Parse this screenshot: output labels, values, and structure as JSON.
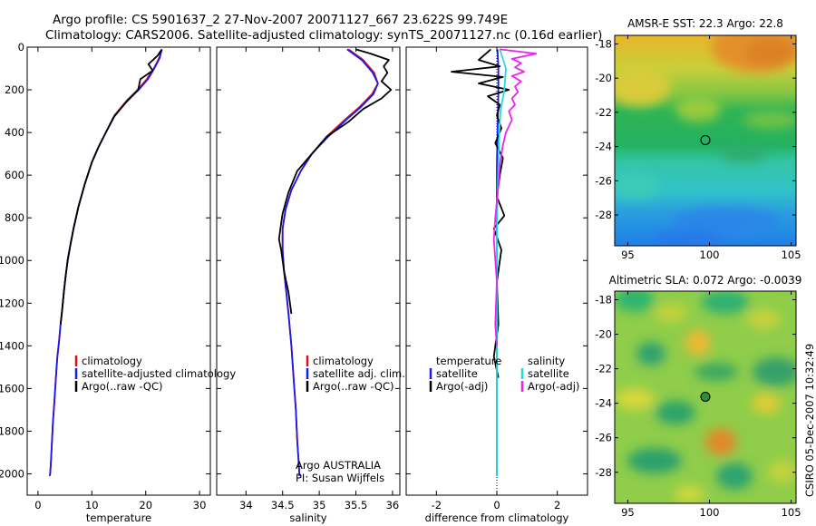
{
  "page": {
    "title_line1": "Argo profile: CS 5901637_2 27-Nov-2007 20071127_667 23.622S 99.749E",
    "title_line2": "Climatology: CARS2006. Satellite-adjusted climatology: synTS_20071127.nc (0.16d earlier)",
    "footer": "CSIRO 05-Dec-2007 10:32:49"
  },
  "colors": {
    "climatology": "#dd1111",
    "satellite": "#1a1aee",
    "argo": "#000000",
    "salinity_satellite": "#22dddd",
    "salinity_argo": "#ee22ee"
  },
  "chart_data": [
    {
      "id": "temperature",
      "type": "line",
      "xlabel": "temperature",
      "ylabel": "",
      "xlim": [
        -2,
        32
      ],
      "ylim": [
        0,
        2100
      ],
      "y_inverted": true,
      "xticks": [
        0,
        10,
        20,
        30
      ],
      "yticks": [
        0,
        200,
        400,
        600,
        800,
        1000,
        1200,
        1400,
        1600,
        1800,
        2000
      ],
      "legend": [
        "climatology",
        "satellite-adjusted climatology",
        "Argo(..raw -QC)"
      ],
      "series": [
        {
          "name": "climatology",
          "color_key": "climatology",
          "x": [
            23,
            22.5,
            21.5,
            20.2,
            18.5,
            16.5,
            14.2,
            12.6,
            11.2,
            10.0,
            8.7,
            7.5,
            6.6,
            6.0,
            5.5,
            5.1,
            4.8,
            4.5,
            4.2,
            3.9,
            3.6,
            3.4,
            3.2,
            3.0,
            2.8,
            2.7,
            2.6,
            2.5,
            2.4,
            2.3,
            2.2
          ],
          "y": [
            10,
            50,
            100,
            150,
            200,
            250,
            320,
            400,
            470,
            540,
            640,
            750,
            850,
            930,
            1000,
            1080,
            1150,
            1230,
            1300,
            1380,
            1450,
            1520,
            1600,
            1680,
            1750,
            1800,
            1850,
            1900,
            1950,
            1990,
            2010
          ]
        },
        {
          "name": "satellite-adjusted climatology",
          "color_key": "satellite",
          "x": [
            23,
            22.6,
            21.6,
            20.4,
            18.7,
            16.6,
            14.3,
            12.6,
            11.2,
            10.0,
            8.7,
            7.5,
            6.6,
            6.0,
            5.5,
            5.1,
            4.8,
            4.5,
            4.2,
            3.9,
            3.6,
            3.4,
            3.2,
            3.0,
            2.8,
            2.7,
            2.6,
            2.5,
            2.4,
            2.3,
            2.2
          ],
          "y": [
            10,
            50,
            100,
            150,
            200,
            250,
            320,
            400,
            470,
            540,
            640,
            750,
            850,
            930,
            1000,
            1080,
            1150,
            1230,
            1300,
            1380,
            1450,
            1520,
            1600,
            1680,
            1750,
            1800,
            1850,
            1900,
            1950,
            1990,
            2010
          ]
        },
        {
          "name": "Argo(..raw -QC)",
          "color_key": "argo",
          "x": [
            23,
            22.2,
            20.5,
            21.3,
            19.0,
            18.6,
            16.3,
            14.0,
            12.6,
            11.2,
            10.0,
            8.7,
            7.5,
            6.6,
            6.0,
            5.5,
            5.1,
            4.8,
            4.5,
            4.2
          ],
          "y": [
            10,
            40,
            80,
            110,
            150,
            200,
            260,
            330,
            400,
            470,
            540,
            640,
            750,
            850,
            930,
            1000,
            1080,
            1150,
            1230,
            1300
          ]
        }
      ]
    },
    {
      "id": "salinity",
      "type": "line",
      "xlabel": "salinity",
      "ylabel": "",
      "xlim": [
        33.6,
        36.1
      ],
      "ylim": [
        0,
        2100
      ],
      "y_inverted": true,
      "xticks": [
        34,
        34.5,
        35,
        35.5,
        36
      ],
      "legend": [
        "climatology",
        "satellite adj. clim.",
        "Argo(..raw -QC)"
      ],
      "annotation": [
        "Argo AUSTRALIA",
        "PI: Susan Wijffels"
      ],
      "series": [
        {
          "name": "climatology",
          "color_key": "climatology",
          "x": [
            35.4,
            35.6,
            35.75,
            35.8,
            35.72,
            35.55,
            35.35,
            35.1,
            34.9,
            34.75,
            34.62,
            34.54,
            34.5,
            34.5,
            34.52,
            34.55,
            34.58,
            34.62,
            34.65,
            34.68,
            34.7,
            34.72,
            34.73
          ],
          "y": [
            10,
            60,
            120,
            170,
            220,
            280,
            340,
            420,
            500,
            580,
            670,
            760,
            850,
            950,
            1050,
            1150,
            1250,
            1400,
            1550,
            1700,
            1850,
            1950,
            2010
          ]
        },
        {
          "name": "satellite adj. clim.",
          "color_key": "satellite",
          "x": [
            35.38,
            35.58,
            35.73,
            35.8,
            35.74,
            35.57,
            35.37,
            35.12,
            34.9,
            34.75,
            34.62,
            34.54,
            34.5,
            34.5,
            34.52,
            34.55,
            34.58,
            34.62,
            34.65,
            34.68,
            34.7,
            34.72,
            34.73
          ],
          "y": [
            10,
            60,
            120,
            170,
            220,
            280,
            340,
            420,
            500,
            580,
            670,
            760,
            850,
            950,
            1050,
            1150,
            1250,
            1400,
            1550,
            1700,
            1850,
            1950,
            2010
          ]
        },
        {
          "name": "Argo(..raw -QC)",
          "color_key": "argo",
          "x": [
            35.5,
            35.7,
            35.95,
            35.88,
            35.93,
            35.85,
            35.98,
            35.85,
            35.6,
            35.4,
            35.1,
            34.9,
            34.7,
            34.58,
            34.5,
            34.47,
            34.45,
            34.48,
            34.52,
            34.58,
            34.62
          ],
          "y": [
            10,
            30,
            60,
            90,
            120,
            160,
            200,
            240,
            290,
            350,
            420,
            500,
            580,
            680,
            780,
            850,
            900,
            950,
            1050,
            1150,
            1250
          ]
        }
      ]
    },
    {
      "id": "difference",
      "type": "line",
      "xlabel": "difference from climatology",
      "ylabel": "",
      "xlim": [
        -3.0,
        3.0
      ],
      "ylim": [
        0,
        2100
      ],
      "y_inverted": true,
      "xticks": [
        -2,
        0,
        2
      ],
      "legend_left_header": "temperature",
      "legend_left": [
        "satellite",
        "Argo(-adj)"
      ],
      "legend_right_header": "salinity",
      "legend_right": [
        "satellite",
        "Argo(-adj)"
      ],
      "series": [
        {
          "name": "temperature satellite",
          "color_key": "satellite",
          "x": [
            0.02,
            0.05,
            0.05,
            0.04,
            0.02,
            0.0,
            0.0,
            0.0,
            0.0,
            0.0,
            0.0,
            0.0,
            0.0,
            0.0,
            0.0
          ],
          "y": [
            10,
            100,
            200,
            300,
            400,
            550,
            700,
            900,
            1100,
            1300,
            1500,
            1700,
            1850,
            1950,
            2010
          ]
        },
        {
          "name": "temperature Argo(-adj)",
          "color_key": "argo",
          "x": [
            -0.2,
            -0.6,
            0.1,
            -1.5,
            0.2,
            -0.6,
            0.4,
            -0.3,
            0.1,
            0.0,
            0.15,
            -0.05,
            0.2,
            0.1,
            0.0,
            0.25,
            -0.1,
            0.15,
            0.0,
            0.05,
            -0.1,
            0.05
          ],
          "y": [
            10,
            60,
            90,
            115,
            140,
            170,
            200,
            230,
            270,
            320,
            380,
            450,
            520,
            600,
            700,
            790,
            850,
            950,
            1100,
            1300,
            1450,
            1550
          ]
        },
        {
          "name": "salinity satellite",
          "color_key": "salinity_satellite",
          "x": [
            0.1,
            0.3,
            0.25,
            0.12,
            0.08,
            0.05,
            0.02,
            0.0,
            0.0,
            0.0,
            0.0,
            0.0,
            0.0,
            0.0
          ],
          "y": [
            10,
            100,
            200,
            300,
            400,
            550,
            700,
            900,
            1100,
            1300,
            1500,
            1700,
            1900,
            2010
          ]
        },
        {
          "name": "salinity Argo(-adj)",
          "color_key": "salinity_argo",
          "x": [
            0.1,
            1.3,
            0.5,
            0.8,
            0.6,
            0.9,
            0.5,
            0.8,
            0.6,
            0.7,
            0.5,
            0.6,
            0.4,
            0.5,
            0.3,
            0.2,
            0.1,
            0.05,
            -0.05,
            -0.1,
            0.0,
            -0.05,
            0.0
          ],
          "y": [
            10,
            30,
            55,
            75,
            95,
            115,
            135,
            160,
            185,
            210,
            240,
            270,
            300,
            340,
            400,
            460,
            550,
            650,
            800,
            900,
            1100,
            1300,
            1400
          ]
        }
      ]
    },
    {
      "id": "sst_map",
      "type": "heatmap",
      "title": "AMSR-E SST: 22.3 Argo: 22.8",
      "xlim": [
        94.2,
        105.3
      ],
      "ylim": [
        -29.8,
        -17.5
      ],
      "xticks": [
        95,
        100,
        105
      ],
      "yticks": [
        -18,
        -20,
        -22,
        -24,
        -26,
        -28
      ],
      "marker": {
        "x": 99.749,
        "y": -23.622
      }
    },
    {
      "id": "sla_map",
      "type": "heatmap",
      "title": "Altimetric SLA: 0.072 Argo: -0.0039",
      "xlim": [
        94.2,
        105.3
      ],
      "ylim": [
        -29.8,
        -17.5
      ],
      "xticks": [
        95,
        100,
        105
      ],
      "yticks": [
        -18,
        -20,
        -22,
        -24,
        -26,
        -28
      ],
      "marker": {
        "x": 99.749,
        "y": -23.622
      }
    }
  ]
}
